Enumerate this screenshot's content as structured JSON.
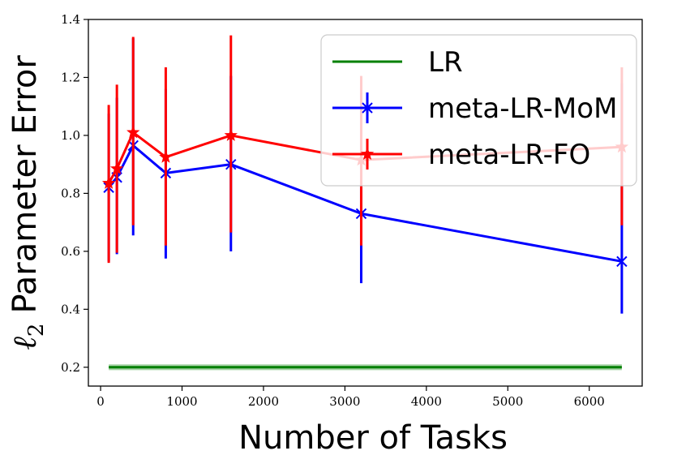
{
  "chart_data": {
    "type": "line",
    "xlabel": "Number of Tasks",
    "ylabel": "Parameter Error",
    "ylabel_symbol": "ℓ",
    "ylabel_subscript": "2",
    "xlim": [
      -150,
      6650
    ],
    "ylim": [
      0.135,
      1.4
    ],
    "xticks": [
      0,
      1000,
      2000,
      3000,
      4000,
      5000,
      6000
    ],
    "yticks": [
      0.2,
      0.4,
      0.6,
      0.8,
      1.0,
      1.2,
      1.4
    ],
    "ytick_labels": [
      "0.2",
      "0.4",
      "0.6",
      "0.8",
      "1.0",
      "1.2",
      "1.4"
    ],
    "legend_position": "upper-right",
    "grid": false,
    "series": [
      {
        "name": "LR",
        "color": "#008000",
        "marker": "none",
        "x": [
          100,
          6400
        ],
        "y": [
          0.2,
          0.2
        ],
        "band": [
          0.19,
          0.21
        ]
      },
      {
        "name": "meta-LR-MoM",
        "color": "#0000ff",
        "marker": "x",
        "x": [
          100,
          200,
          400,
          800,
          1600,
          3200,
          6400
        ],
        "y": [
          0.82,
          0.855,
          0.965,
          0.87,
          0.9,
          0.73,
          0.565
        ],
        "err_low": [
          0.565,
          0.59,
          0.655,
          0.575,
          0.6,
          0.49,
          0.385
        ],
        "err_high": [
          1.075,
          1.13,
          1.335,
          1.16,
          1.205,
          1.165,
          1.18
        ]
      },
      {
        "name": "meta-LR-FO",
        "color": "#ff0000",
        "marker": "star",
        "x": [
          100,
          200,
          400,
          800,
          1600,
          3200,
          6400
        ],
        "y": [
          0.835,
          0.885,
          1.01,
          0.925,
          1.0,
          0.915,
          0.96
        ],
        "err_low": [
          0.56,
          0.595,
          0.69,
          0.62,
          0.665,
          0.62,
          0.69
        ],
        "err_high": [
          1.105,
          1.175,
          1.34,
          1.235,
          1.345,
          1.205,
          1.235
        ]
      }
    ]
  }
}
